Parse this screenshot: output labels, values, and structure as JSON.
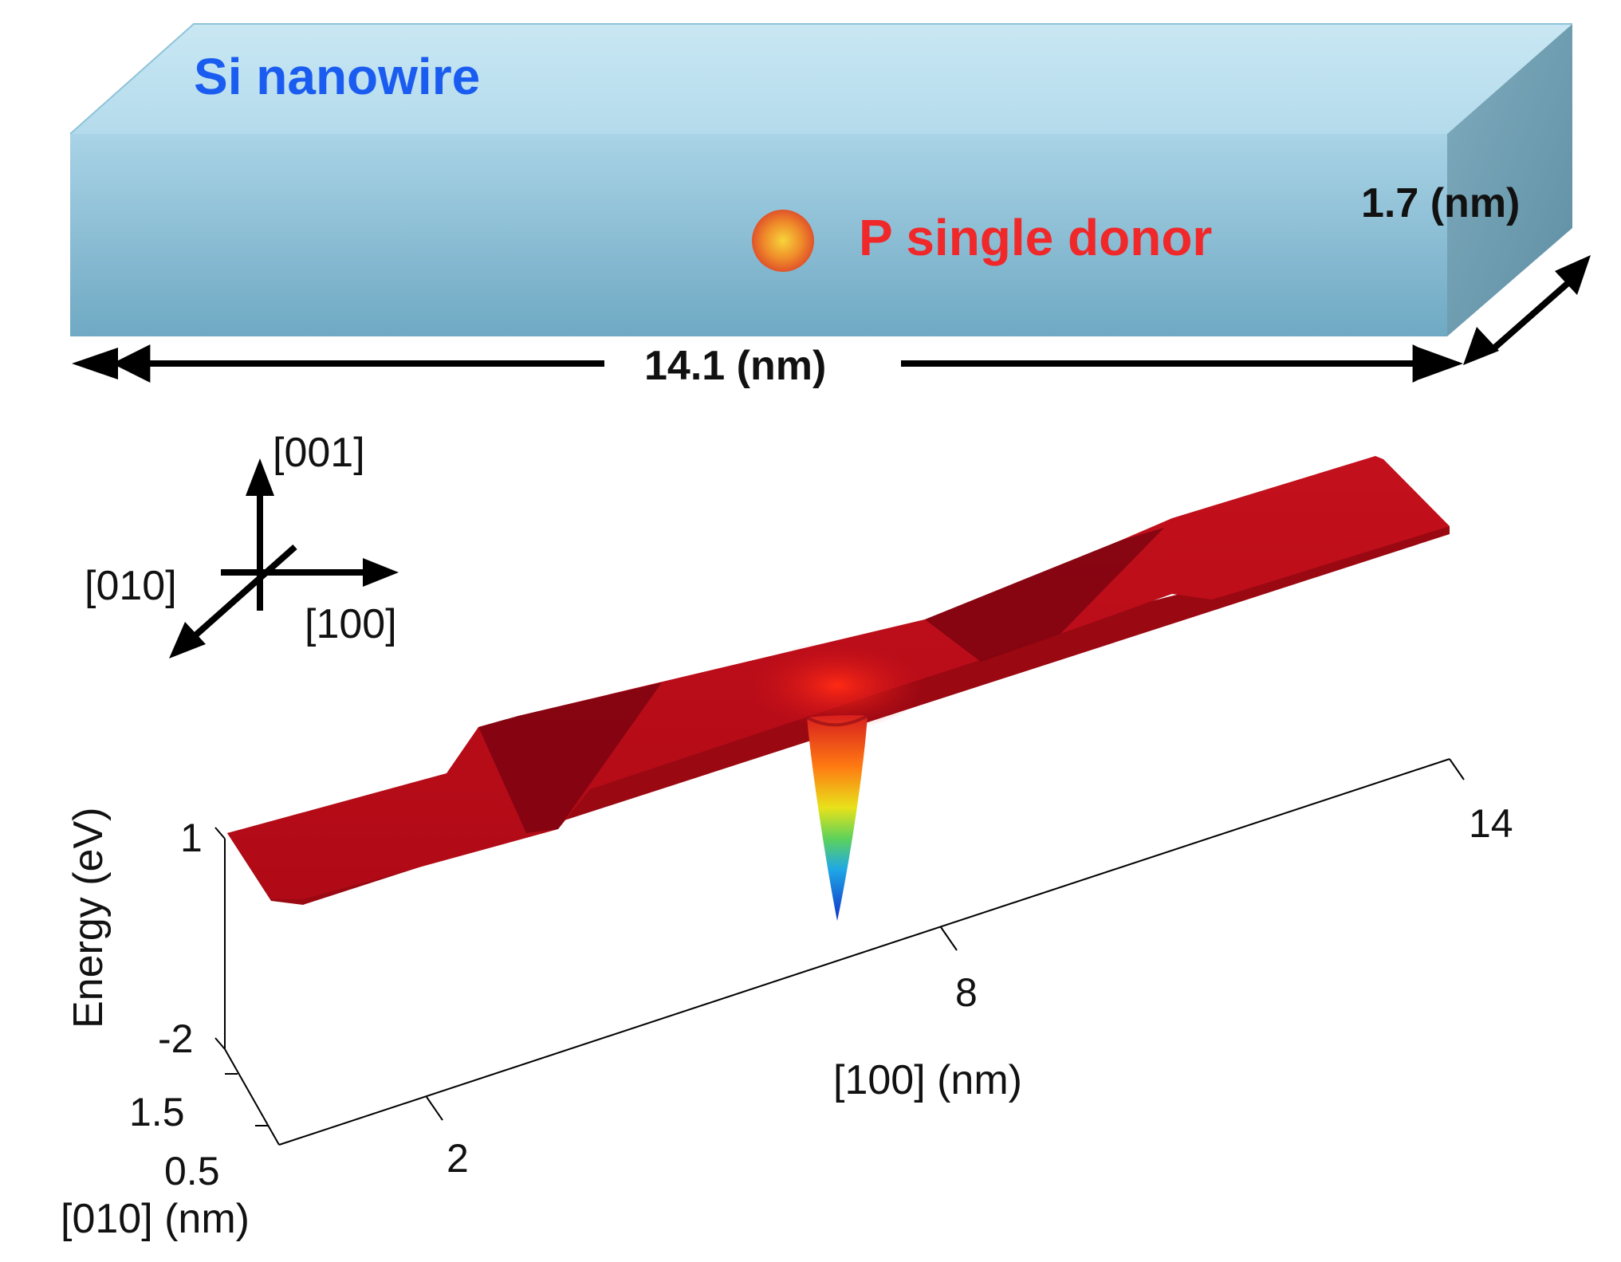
{
  "nanowire": {
    "title": "Si nanowire",
    "donor_label": "P single donor",
    "length_label": "14.1 (nm)",
    "thickness_label": "1.7 (nm)",
    "title_color": "#1a5cf0",
    "donor_color": "#f0282a"
  },
  "axes_key": {
    "z": "[001]",
    "y": "[010]",
    "x": "[100]"
  },
  "plot": {
    "zlabel": "Energy (eV)",
    "xlabel": "[100] (nm)",
    "ylabel": "[010] (nm)",
    "z_ticks": [
      "1",
      "-2"
    ],
    "y_ticks": [
      "1.5",
      "0.5"
    ],
    "x_ticks": [
      "2",
      "8",
      "14"
    ]
  }
}
